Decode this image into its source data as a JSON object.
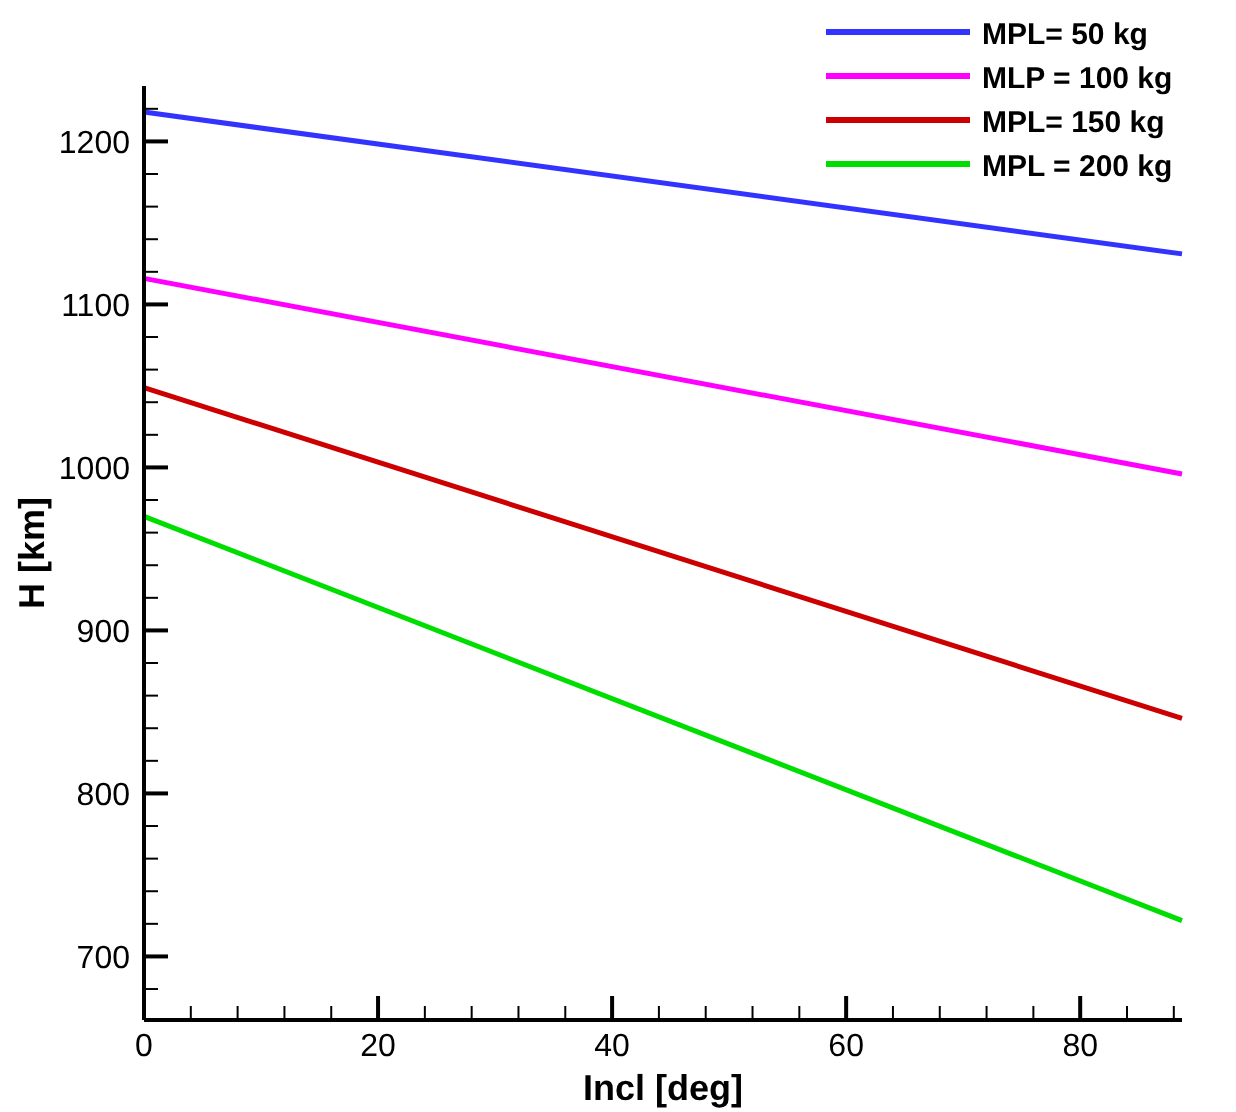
{
  "chart_data": {
    "type": "line",
    "xlabel": "Incl [deg]",
    "ylabel": "H [km]",
    "xlim": [
      0,
      88.7
    ],
    "ylim": [
      661,
      1234
    ],
    "xticks": [
      0,
      {
        "value": 4,
        "label": null
      },
      {
        "value": 8,
        "label": null
      },
      {
        "value": 12,
        "label": null
      },
      {
        "value": 16,
        "label": null
      },
      20,
      {
        "value": 24,
        "label": null
      },
      {
        "value": 28,
        "label": null
      },
      {
        "value": 32,
        "label": null
      },
      {
        "value": 36,
        "label": null
      },
      40,
      {
        "value": 44,
        "label": null
      },
      {
        "value": 48,
        "label": null
      },
      {
        "value": 52,
        "label": null
      },
      {
        "value": 56,
        "label": null
      },
      60,
      {
        "value": 64,
        "label": null
      },
      {
        "value": 68,
        "label": null
      },
      {
        "value": 72,
        "label": null
      },
      {
        "value": 76,
        "label": null
      },
      80,
      {
        "value": 84,
        "label": null
      },
      {
        "value": 88,
        "label": null
      }
    ],
    "yticks": [
      {
        "value": 680,
        "label": null
      },
      700,
      {
        "value": 720,
        "label": null
      },
      {
        "value": 740,
        "label": null
      },
      {
        "value": 760,
        "label": null
      },
      {
        "value": 780,
        "label": null
      },
      800,
      {
        "value": 820,
        "label": null
      },
      {
        "value": 840,
        "label": null
      },
      {
        "value": 860,
        "label": null
      },
      {
        "value": 880,
        "label": null
      },
      900,
      {
        "value": 920,
        "label": null
      },
      {
        "value": 940,
        "label": null
      },
      {
        "value": 960,
        "label": null
      },
      {
        "value": 980,
        "label": null
      },
      1000,
      {
        "value": 1020,
        "label": null
      },
      {
        "value": 1040,
        "label": null
      },
      {
        "value": 1060,
        "label": null
      },
      {
        "value": 1080,
        "label": null
      },
      1100,
      {
        "value": 1120,
        "label": null
      },
      {
        "value": 1140,
        "label": null
      },
      {
        "value": 1160,
        "label": null
      },
      {
        "value": 1180,
        "label": null
      },
      1200,
      {
        "value": 1220,
        "label": null
      }
    ],
    "x": [
      0,
      88.7
    ],
    "grid": false,
    "legend": "top right",
    "marker": "none",
    "line_style": "solid",
    "series": [
      {
        "name": "MPL= 50 kg",
        "color": "#3333ff",
        "values": [
          1218,
          1131
        ]
      },
      {
        "name": "MLP = 100 kg",
        "color": "#ff00ff",
        "values": [
          1116,
          996
        ]
      },
      {
        "name": "MPL= 150 kg",
        "color": "#cc0000",
        "values": [
          1049,
          846
        ]
      },
      {
        "name": "MPL = 200 kg",
        "color": "#00dd00",
        "values": [
          970,
          722
        ]
      }
    ]
  }
}
